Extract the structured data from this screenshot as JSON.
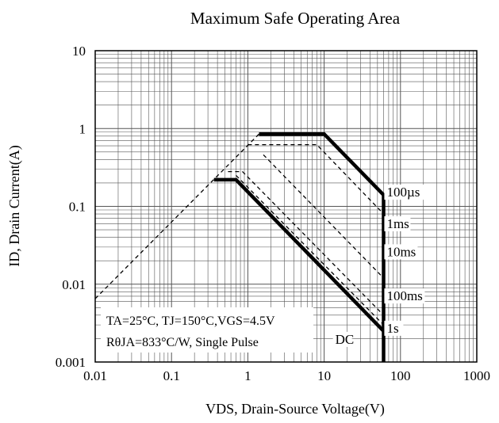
{
  "chart_data": {
    "type": "line",
    "title": "Maximum Safe Operating Area",
    "xlabel": "VDS, Drain-Source Voltage(V)",
    "ylabel": "ID, Drain Current(A)",
    "x_scale": "log",
    "y_scale": "log",
    "xlim": [
      0.01,
      1000
    ],
    "ylim": [
      0.001,
      10
    ],
    "grid": true,
    "x_ticks": [
      {
        "value": 0.01,
        "label": "0.01"
      },
      {
        "value": 0.1,
        "label": "0.1"
      },
      {
        "value": 1,
        "label": "1"
      },
      {
        "value": 10,
        "label": "10"
      },
      {
        "value": 100,
        "label": "100"
      },
      {
        "value": 1000,
        "label": "1000"
      }
    ],
    "y_ticks": [
      {
        "value": 0.001,
        "label": "0.001"
      },
      {
        "value": 0.01,
        "label": "0.01"
      },
      {
        "value": 0.1,
        "label": "0.1"
      },
      {
        "value": 1,
        "label": "1"
      },
      {
        "value": 10,
        "label": "10"
      }
    ],
    "series": [
      {
        "key": "rds_limit",
        "style": "dashed",
        "points": [
          [
            0.01,
            0.0065
          ],
          [
            1.4,
            0.85
          ]
        ]
      },
      {
        "key": "100us",
        "style": "solid-bold",
        "points": [
          [
            1.4,
            0.85
          ],
          [
            10,
            0.85
          ],
          [
            60,
            0.14
          ],
          [
            60,
            0.001
          ]
        ]
      },
      {
        "key": "1ms",
        "style": "dashed",
        "points": [
          [
            1.0,
            0.62
          ],
          [
            8,
            0.62
          ],
          [
            60,
            0.08
          ]
        ]
      },
      {
        "key": "10ms",
        "style": "dashed",
        "points": [
          [
            1.6,
            0.46
          ],
          [
            60,
            0.012
          ]
        ]
      },
      {
        "key": "100ms",
        "style": "dashed",
        "points": [
          [
            0.55,
            0.28
          ],
          [
            0.85,
            0.28
          ],
          [
            60,
            0.004
          ]
        ]
      },
      {
        "key": "1s",
        "style": "dashed",
        "points": [
          [
            0.7,
            0.25
          ],
          [
            60,
            0.003
          ]
        ]
      },
      {
        "key": "dc",
        "style": "solid-bold",
        "points": [
          [
            0.36,
            0.22
          ],
          [
            0.7,
            0.22
          ],
          [
            60,
            0.0025
          ]
        ]
      }
    ],
    "curve_labels": [
      {
        "key": "100us",
        "text": "100µs",
        "x": 66,
        "y": 0.14
      },
      {
        "key": "1ms",
        "text": "1ms",
        "x": 66,
        "y": 0.055
      },
      {
        "key": "10ms",
        "text": "10ms",
        "x": 66,
        "y": 0.024
      },
      {
        "key": "100ms",
        "text": "100ms",
        "x": 66,
        "y": 0.0065
      },
      {
        "key": "1s",
        "text": "1s",
        "x": 66,
        "y": 0.0025
      },
      {
        "key": "dc",
        "text": "DC",
        "x": 14,
        "y": 0.0018
      }
    ],
    "conditions": {
      "line1": "TA=25°C, TJ=150°C,VGS=4.5V",
      "line2": "RθJA=833°C/W, Single Pulse"
    }
  }
}
